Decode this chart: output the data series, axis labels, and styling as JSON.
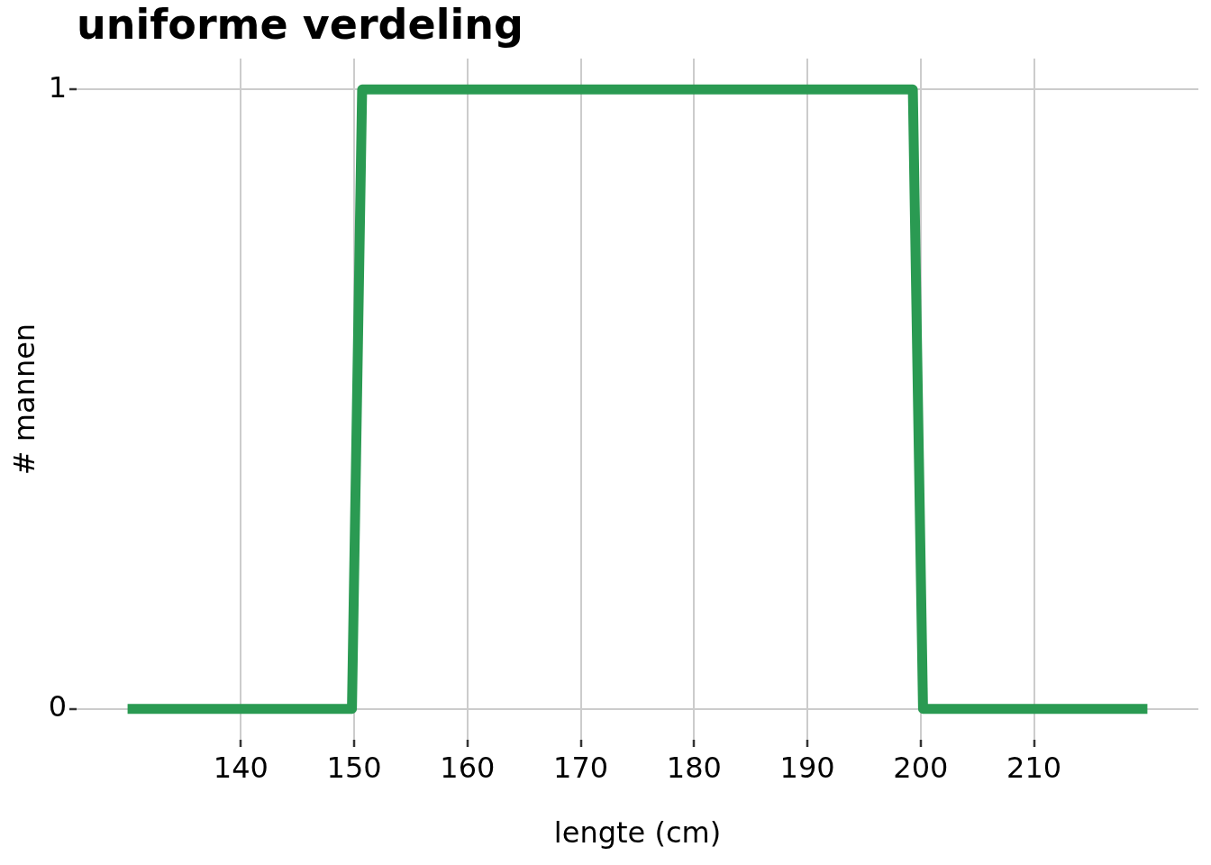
{
  "chart_data": {
    "type": "line",
    "title": "uniforme verdeling",
    "xlabel": "lengte (cm)",
    "ylabel": "# mannen",
    "x": [
      130,
      149.8,
      150.7,
      199.3,
      200.2,
      220
    ],
    "series": [
      {
        "color": "#2a9a52",
        "values": [
          0,
          0,
          1,
          1,
          0,
          0
        ]
      }
    ],
    "xlim": [
      125.5,
      224.5
    ],
    "ylim": [
      -0.05,
      1.05
    ],
    "xticks": [
      140,
      150,
      160,
      170,
      180,
      190,
      200,
      210
    ],
    "yticks": [
      0,
      1
    ],
    "grid": true,
    "marker": "none",
    "line_style": "solid"
  }
}
